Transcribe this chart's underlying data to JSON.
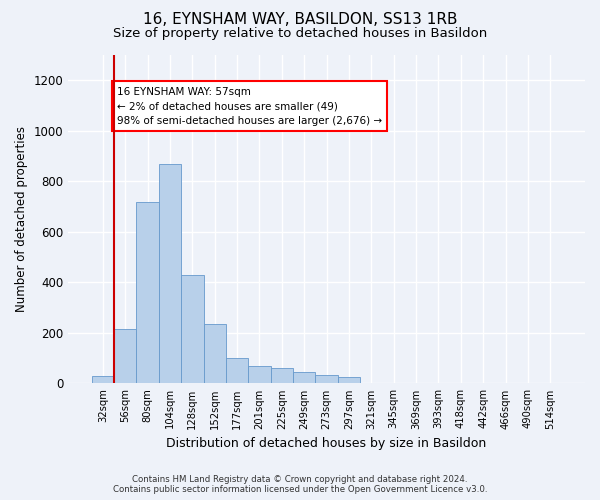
{
  "title": "16, EYNSHAM WAY, BASILDON, SS13 1RB",
  "subtitle": "Size of property relative to detached houses in Basildon",
  "xlabel": "Distribution of detached houses by size in Basildon",
  "ylabel": "Number of detached properties",
  "categories": [
    "32sqm",
    "56sqm",
    "80sqm",
    "104sqm",
    "128sqm",
    "152sqm",
    "177sqm",
    "201sqm",
    "225sqm",
    "249sqm",
    "273sqm",
    "297sqm",
    "321sqm",
    "345sqm",
    "369sqm",
    "393sqm",
    "418sqm",
    "442sqm",
    "466sqm",
    "490sqm",
    "514sqm"
  ],
  "bar_values": [
    30,
    215,
    720,
    870,
    430,
    235,
    100,
    70,
    60,
    45,
    35,
    25,
    0,
    0,
    0,
    0,
    0,
    0,
    0,
    0,
    0
  ],
  "bar_color": "#b8d0ea",
  "bar_edge_color": "#6699cc",
  "annotation_line1": "16 EYNSHAM WAY: 57sqm",
  "annotation_line2": "← 2% of detached houses are smaller (49)",
  "annotation_line3": "98% of semi-detached houses are larger (2,676) →",
  "vline_color": "#cc0000",
  "vline_x": 0.5,
  "ylim": [
    0,
    1300
  ],
  "yticks": [
    0,
    200,
    400,
    600,
    800,
    1000,
    1200
  ],
  "footer_line1": "Contains HM Land Registry data © Crown copyright and database right 2024.",
  "footer_line2": "Contains public sector information licensed under the Open Government Licence v3.0.",
  "background_color": "#eef2f9",
  "grid_color": "#ffffff",
  "title_fontsize": 11,
  "subtitle_fontsize": 9.5
}
